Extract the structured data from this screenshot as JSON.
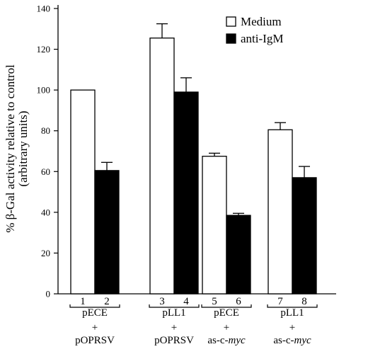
{
  "chart_data": {
    "type": "bar",
    "ylabel_lines": [
      "% β-Gal activity relative to control",
      "(arbitrary units)"
    ],
    "ylim": [
      0,
      140
    ],
    "yticks": [
      0,
      20,
      40,
      60,
      80,
      100,
      120,
      140
    ],
    "grid": false,
    "legend_position": "top-right",
    "series": [
      {
        "name": "Medium",
        "color": "#ffffff",
        "values": [
          100,
          125.5,
          67.5,
          80.5
        ],
        "errors": [
          0,
          7,
          1.5,
          3.5
        ],
        "lane_numbers": [
          "1",
          "3",
          "5",
          "7"
        ]
      },
      {
        "name": "anti-IgM",
        "color": "#000000",
        "values": [
          60.5,
          99,
          38.5,
          57
        ],
        "errors": [
          4,
          7,
          1,
          5.5
        ],
        "lane_numbers": [
          "2",
          "4",
          "6",
          "8"
        ]
      }
    ],
    "groups": [
      {
        "lines": [
          "pECE",
          "+",
          "pOPRSV"
        ],
        "italic_suffix": [
          "",
          "",
          ""
        ]
      },
      {
        "lines": [
          "pLL1",
          "+",
          "pOPRSV"
        ],
        "italic_suffix": [
          "",
          "",
          ""
        ]
      },
      {
        "lines": [
          "pECE",
          "+",
          "as-c-"
        ],
        "italic_suffix": [
          "",
          "",
          "myc"
        ]
      },
      {
        "lines": [
          "pLL1",
          "+",
          "as-c-"
        ],
        "italic_suffix": [
          "",
          "",
          "myc"
        ]
      }
    ]
  }
}
